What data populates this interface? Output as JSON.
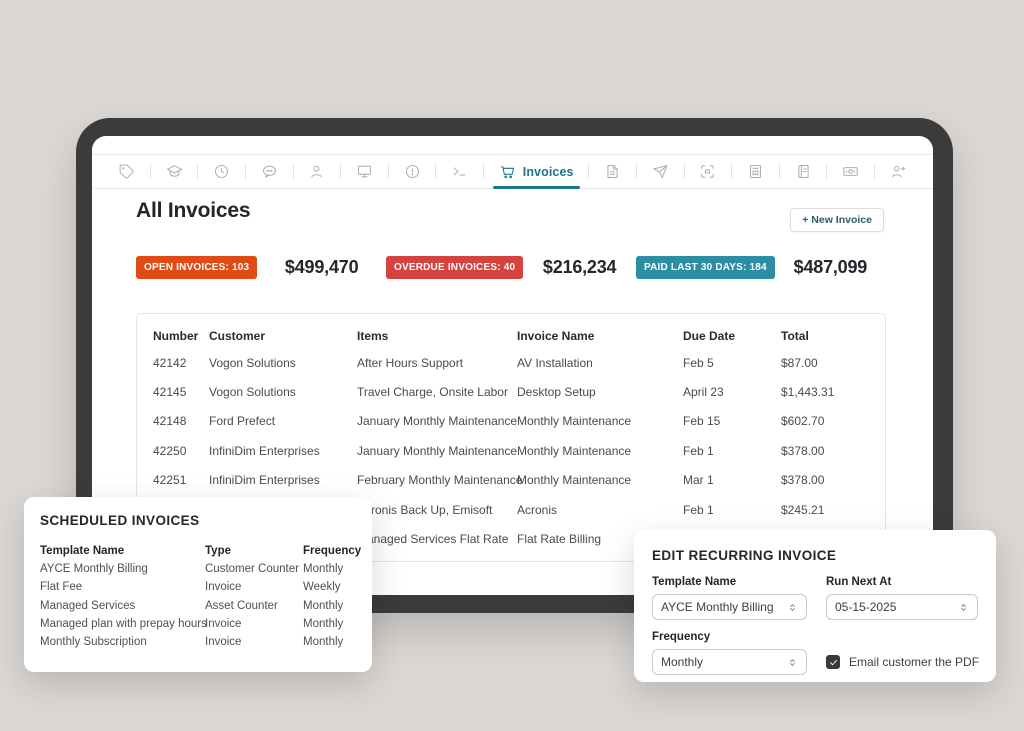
{
  "toolbar": {
    "items": [
      {
        "icon": "tag-icon"
      },
      {
        "icon": "graduation-cap-icon"
      },
      {
        "icon": "gauge-icon"
      },
      {
        "icon": "chat-icon"
      },
      {
        "icon": "user-icon"
      },
      {
        "icon": "monitor-icon"
      },
      {
        "icon": "alert-circle-icon"
      },
      {
        "icon": "terminal-icon"
      },
      {
        "icon": "cart-icon",
        "label": "Invoices",
        "active": true
      },
      {
        "icon": "file-icon"
      },
      {
        "icon": "send-icon"
      },
      {
        "icon": "scan-icon"
      },
      {
        "icon": "calculator-icon"
      },
      {
        "icon": "notebook-icon"
      },
      {
        "icon": "cash-icon"
      },
      {
        "icon": "user-plus-icon"
      }
    ]
  },
  "header": {
    "title": "All Invoices",
    "new_invoice_label": "+ New Invoice"
  },
  "stats": [
    {
      "badge": "OPEN INVOICES: 103",
      "value": "$499,470",
      "color": "#E04B15"
    },
    {
      "badge": "OVERDUE INVOICES: 40",
      "value": "$216,234",
      "color": "#D5433F"
    },
    {
      "badge": "PAID LAST 30 DAYS: 184",
      "value": "$487,099",
      "color": "#2C8EA4"
    }
  ],
  "invoice_table": {
    "columns": [
      "Number",
      "Customer",
      "Items",
      "Invoice Name",
      "Due Date",
      "Total"
    ],
    "rows": [
      [
        "42142",
        "Vogon Solutions",
        "After Hours Support",
        "AV Installation",
        "Feb 5",
        "$87.00"
      ],
      [
        "42145",
        "Vogon Solutions",
        "Travel Charge, Onsite Labor",
        "Desktop Setup",
        "April 23",
        "$1,443.31"
      ],
      [
        "42148",
        "Ford Prefect",
        "January Monthly Maintenance",
        "Monthly Maintenance",
        "Feb 15",
        "$602.70"
      ],
      [
        "42250",
        "InfiniDim Enterprises",
        "January Monthly Maintenance",
        "Monthly Maintenance",
        "Feb 1",
        "$378.00"
      ],
      [
        "42251",
        "InfiniDim Enterprises",
        "February Monthly Maintenance",
        "Monthly Maintenance",
        "Mar 1",
        "$378.00"
      ],
      [
        "",
        "",
        "Acronis Back Up, Emisoft",
        "Acronis",
        "Feb 1",
        "$245.21"
      ],
      [
        "",
        "",
        "Managed Services Flat Rate",
        "Flat Rate Billing",
        "",
        ""
      ]
    ]
  },
  "scheduled_card": {
    "title": "SCHEDULED INVOICES",
    "columns": [
      "Template Name",
      "Type",
      "Frequency"
    ],
    "rows": [
      [
        "AYCE Monthly Billing",
        "Customer Counter",
        "Monthly"
      ],
      [
        "Flat Fee",
        "Invoice",
        "Weekly"
      ],
      [
        "Managed Services",
        "Asset Counter",
        "Monthly"
      ],
      [
        "Managed plan with prepay hours",
        "Invoice",
        "Monthly"
      ],
      [
        "Monthly Subscription",
        "Invoice",
        "Monthly"
      ]
    ]
  },
  "edit_card": {
    "title": "EDIT RECURRING INVOICE",
    "fields": {
      "template_name": {
        "label": "Template Name",
        "value": "AYCE Monthly Billing"
      },
      "run_next_at": {
        "label": "Run Next At",
        "value": "05-15-2025"
      },
      "frequency": {
        "label": "Frequency",
        "value": "Monthly"
      }
    },
    "checkbox": {
      "label": "Email customer the PDF",
      "checked": true
    }
  },
  "colors": {
    "background": "#DBD7D4",
    "bezel": "#3B3B3B",
    "accent_teal": "#19768B",
    "badge_open": "#E04B15",
    "badge_overdue": "#D5433F",
    "badge_paid": "#2C8EA4"
  }
}
